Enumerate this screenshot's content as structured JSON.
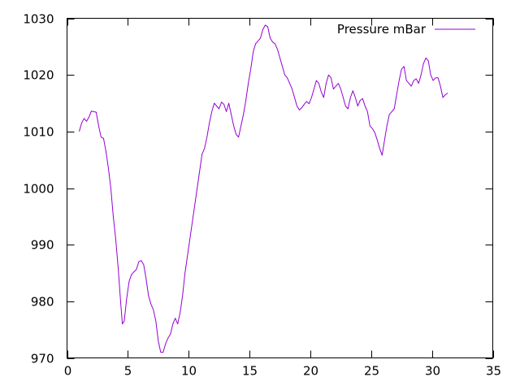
{
  "chart_data": {
    "type": "line",
    "title": "",
    "xlabel": "",
    "ylabel": "",
    "xlim": [
      0,
      35
    ],
    "ylim": [
      970,
      1030
    ],
    "x_ticks": [
      0,
      5,
      10,
      15,
      20,
      25,
      30,
      35
    ],
    "y_ticks": [
      970,
      980,
      990,
      1000,
      1010,
      1020,
      1030
    ],
    "grid": false,
    "legend_position": "top-right",
    "series": [
      {
        "name": "Pressure mBar",
        "color": "#9400d3",
        "points": [
          [
            1.0,
            1010.0
          ],
          [
            1.2,
            1011.5
          ],
          [
            1.4,
            1012.3
          ],
          [
            1.6,
            1011.8
          ],
          [
            1.8,
            1012.5
          ],
          [
            2.0,
            1013.6
          ],
          [
            2.2,
            1013.5
          ],
          [
            2.4,
            1013.4
          ],
          [
            2.6,
            1011.0
          ],
          [
            2.8,
            1009.0
          ],
          [
            3.0,
            1008.8
          ],
          [
            3.2,
            1006.5
          ],
          [
            3.4,
            1003.5
          ],
          [
            3.6,
            1000.0
          ],
          [
            3.8,
            995.0
          ],
          [
            4.0,
            991.0
          ],
          [
            4.2,
            986.0
          ],
          [
            4.4,
            980.0
          ],
          [
            4.55,
            976.0
          ],
          [
            4.7,
            976.5
          ],
          [
            4.9,
            980.5
          ],
          [
            5.1,
            983.5
          ],
          [
            5.3,
            984.7
          ],
          [
            5.5,
            985.2
          ],
          [
            5.7,
            985.6
          ],
          [
            5.9,
            987.0
          ],
          [
            6.1,
            987.2
          ],
          [
            6.3,
            986.5
          ],
          [
            6.5,
            984.0
          ],
          [
            6.7,
            981.0
          ],
          [
            6.9,
            979.5
          ],
          [
            7.1,
            978.5
          ],
          [
            7.3,
            976.5
          ],
          [
            7.5,
            973.0
          ],
          [
            7.7,
            971.0
          ],
          [
            7.9,
            971.0
          ],
          [
            8.1,
            972.5
          ],
          [
            8.3,
            973.5
          ],
          [
            8.5,
            974.2
          ],
          [
            8.7,
            976.0
          ],
          [
            8.9,
            977.0
          ],
          [
            9.1,
            976.0
          ],
          [
            9.3,
            978.0
          ],
          [
            9.5,
            981.0
          ],
          [
            9.7,
            985.0
          ],
          [
            9.9,
            988.0
          ],
          [
            10.1,
            991.0
          ],
          [
            10.3,
            994.0
          ],
          [
            10.5,
            997.0
          ],
          [
            10.7,
            1000.0
          ],
          [
            10.9,
            1003.0
          ],
          [
            11.1,
            1006.0
          ],
          [
            11.3,
            1007.0
          ],
          [
            11.5,
            1009.0
          ],
          [
            11.7,
            1011.5
          ],
          [
            11.9,
            1013.5
          ],
          [
            12.1,
            1015.0
          ],
          [
            12.3,
            1014.5
          ],
          [
            12.5,
            1014.0
          ],
          [
            12.7,
            1015.2
          ],
          [
            12.9,
            1014.8
          ],
          [
            13.1,
            1013.5
          ],
          [
            13.3,
            1015.0
          ],
          [
            13.5,
            1013.0
          ],
          [
            13.7,
            1011.0
          ],
          [
            13.9,
            1009.5
          ],
          [
            14.1,
            1009.0
          ],
          [
            14.3,
            1011.0
          ],
          [
            14.5,
            1013.0
          ],
          [
            14.7,
            1015.5
          ],
          [
            14.9,
            1018.5
          ],
          [
            15.1,
            1021.0
          ],
          [
            15.3,
            1024.0
          ],
          [
            15.5,
            1025.5
          ],
          [
            15.7,
            1026.0
          ],
          [
            15.9,
            1026.5
          ],
          [
            16.1,
            1028.0
          ],
          [
            16.3,
            1028.8
          ],
          [
            16.5,
            1028.5
          ],
          [
            16.7,
            1026.5
          ],
          [
            16.9,
            1025.8
          ],
          [
            17.1,
            1025.5
          ],
          [
            17.3,
            1024.5
          ],
          [
            17.5,
            1023.0
          ],
          [
            17.7,
            1021.5
          ],
          [
            17.9,
            1020.0
          ],
          [
            18.1,
            1019.5
          ],
          [
            18.3,
            1018.5
          ],
          [
            18.5,
            1017.5
          ],
          [
            18.7,
            1016.0
          ],
          [
            18.9,
            1014.5
          ],
          [
            19.1,
            1013.8
          ],
          [
            19.3,
            1014.2
          ],
          [
            19.5,
            1014.8
          ],
          [
            19.7,
            1015.3
          ],
          [
            19.9,
            1014.9
          ],
          [
            20.1,
            1016.0
          ],
          [
            20.3,
            1017.5
          ],
          [
            20.5,
            1019.0
          ],
          [
            20.7,
            1018.5
          ],
          [
            20.9,
            1017.0
          ],
          [
            21.1,
            1016.0
          ],
          [
            21.3,
            1018.5
          ],
          [
            21.5,
            1020.0
          ],
          [
            21.7,
            1019.5
          ],
          [
            21.9,
            1017.5
          ],
          [
            22.1,
            1018.0
          ],
          [
            22.3,
            1018.5
          ],
          [
            22.5,
            1017.5
          ],
          [
            22.7,
            1016.0
          ],
          [
            22.9,
            1014.5
          ],
          [
            23.1,
            1014.0
          ],
          [
            23.3,
            1016.0
          ],
          [
            23.5,
            1017.2
          ],
          [
            23.7,
            1016.0
          ],
          [
            23.9,
            1014.5
          ],
          [
            24.1,
            1015.5
          ],
          [
            24.3,
            1015.8
          ],
          [
            24.5,
            1014.5
          ],
          [
            24.7,
            1013.5
          ],
          [
            24.9,
            1011.0
          ],
          [
            25.1,
            1010.5
          ],
          [
            25.3,
            1009.8
          ],
          [
            25.5,
            1008.5
          ],
          [
            25.7,
            1007.0
          ],
          [
            25.9,
            1005.8
          ],
          [
            26.1,
            1008.5
          ],
          [
            26.3,
            1011.0
          ],
          [
            26.5,
            1013.0
          ],
          [
            26.7,
            1013.5
          ],
          [
            26.9,
            1014.0
          ],
          [
            27.1,
            1016.5
          ],
          [
            27.3,
            1019.0
          ],
          [
            27.5,
            1021.0
          ],
          [
            27.7,
            1021.5
          ],
          [
            27.9,
            1019.0
          ],
          [
            28.1,
            1018.5
          ],
          [
            28.3,
            1018.0
          ],
          [
            28.5,
            1019.0
          ],
          [
            28.7,
            1019.3
          ],
          [
            28.9,
            1018.5
          ],
          [
            29.1,
            1020.0
          ],
          [
            29.3,
            1022.0
          ],
          [
            29.5,
            1023.0
          ],
          [
            29.7,
            1022.5
          ],
          [
            29.9,
            1020.0
          ],
          [
            30.1,
            1019.0
          ],
          [
            30.3,
            1019.5
          ],
          [
            30.5,
            1019.5
          ],
          [
            30.7,
            1018.0
          ],
          [
            30.9,
            1016.0
          ],
          [
            31.1,
            1016.5
          ],
          [
            31.3,
            1016.8
          ]
        ]
      }
    ]
  }
}
